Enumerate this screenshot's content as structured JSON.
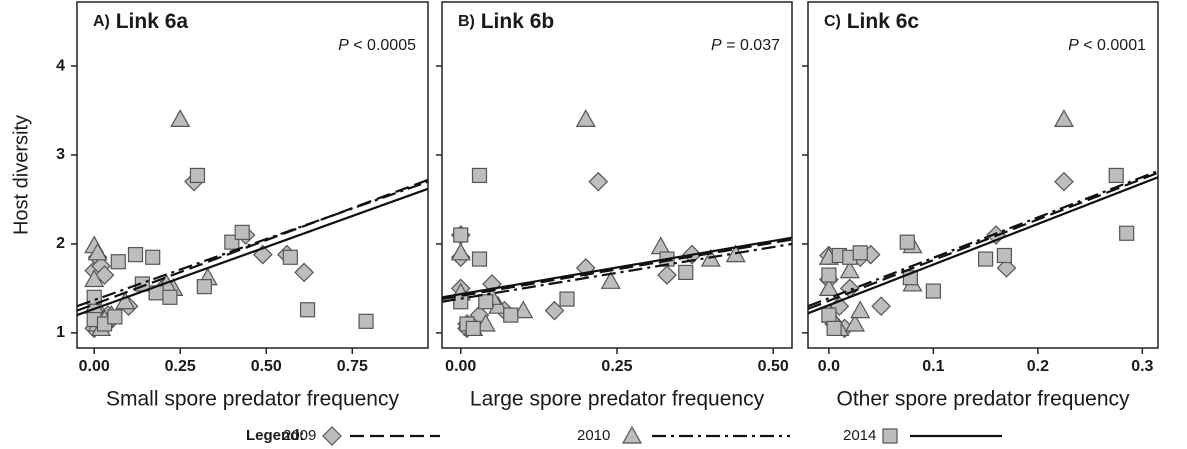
{
  "chart_data": [
    {
      "type": "scatter",
      "panel": "A)",
      "title": "Link 6a",
      "p_symbol": "P",
      "p_text": "< 0.0005",
      "xlabel": "Small spore predator frequency",
      "ylabel": "Host diversity",
      "xlim": [
        -0.05,
        0.97
      ],
      "ylim": [
        0.83,
        4.72
      ],
      "xticks": [
        {
          "value": 0,
          "label": "0.00"
        },
        0.25,
        {
          "value": 0.5,
          "label": "0.50"
        },
        0.75
      ],
      "yticks": [
        1,
        2,
        3,
        4
      ],
      "series": [
        {
          "name": "2009",
          "marker": "diamond",
          "line_style": "dashed",
          "color": "#bdbdbd",
          "x": [
            0,
            0,
            0.01,
            0.02,
            0.03,
            0.02,
            0.05,
            0.1,
            0.2,
            0.29,
            0.44,
            0.49,
            0.56,
            0.61,
            0.01,
            0.04
          ],
          "values": [
            1.05,
            1.7,
            1.85,
            1.75,
            1.65,
            1.2,
            1.15,
            1.3,
            1.5,
            2.7,
            2.1,
            1.88,
            1.88,
            1.68,
            1.1,
            1.2
          ],
          "fit": {
            "x": [
              -0.05,
              0.97
            ],
            "values": [
              1.25,
              2.72
            ]
          }
        },
        {
          "name": "2010",
          "marker": "triangle",
          "line_style": "dashdot",
          "color": "#bdbdbd",
          "x": [
            0,
            0,
            0,
            0.01,
            0.02,
            0.05,
            0.09,
            0.23,
            0.25,
            0.33,
            0.21,
            0.01,
            0.03
          ],
          "values": [
            1.98,
            1.6,
            1.3,
            1.1,
            1.05,
            1.2,
            1.35,
            1.5,
            3.4,
            1.62,
            1.55,
            1.9,
            1.15
          ],
          "fit": {
            "x": [
              -0.05,
              0.97
            ],
            "values": [
              1.3,
              2.7
            ]
          }
        },
        {
          "name": "2014",
          "marker": "square",
          "line_style": "solid",
          "color": "#bdbdbd",
          "x": [
            0,
            0,
            0.03,
            0.07,
            0.12,
            0.17,
            0.18,
            0.22,
            0.3,
            0.32,
            0.4,
            0.43,
            0.57,
            0.62,
            0.79,
            0.06,
            0.14
          ],
          "values": [
            1.4,
            1.15,
            1.1,
            1.8,
            1.88,
            1.85,
            1.45,
            1.4,
            2.77,
            1.52,
            2.02,
            2.13,
            1.85,
            1.26,
            1.13,
            1.18,
            1.55
          ],
          "fit": {
            "x": [
              -0.05,
              0.97
            ],
            "values": [
              1.2,
              2.62
            ]
          }
        }
      ]
    },
    {
      "type": "scatter",
      "panel": "B)",
      "title": "Link 6b",
      "p_symbol": "P",
      "p_text": "= 0.037",
      "xlabel": "Large spore predator frequency",
      "xlim": [
        -0.03,
        0.53
      ],
      "ylim": [
        0.83,
        4.72
      ],
      "xticks": [
        {
          "value": 0,
          "label": "0.00"
        },
        0.25,
        {
          "value": 0.5,
          "label": "0.50"
        }
      ],
      "yticks": [
        1,
        2,
        3,
        4
      ],
      "series": [
        {
          "name": "2009",
          "marker": "diamond",
          "line_style": "dashed",
          "color": "#bdbdbd",
          "x": [
            0,
            0,
            0,
            0.01,
            0.03,
            0.05,
            0.07,
            0.15,
            0.2,
            0.22,
            0.33,
            0.37,
            0.01
          ],
          "values": [
            2.1,
            1.85,
            1.5,
            1.1,
            1.2,
            1.55,
            1.25,
            1.25,
            1.73,
            2.7,
            1.65,
            1.88,
            1.05
          ],
          "fit": {
            "x": [
              -0.03,
              0.53
            ],
            "values": [
              1.38,
              2.05
            ]
          }
        },
        {
          "name": "2010",
          "marker": "triangle",
          "line_style": "dashdot",
          "color": "#bdbdbd",
          "x": [
            0,
            0,
            0.02,
            0.04,
            0.06,
            0.1,
            0.2,
            0.24,
            0.32,
            0.4,
            0.44,
            0.05
          ],
          "values": [
            1.9,
            1.45,
            1.05,
            1.1,
            1.3,
            1.25,
            3.4,
            1.58,
            1.97,
            1.83,
            1.88,
            1.4
          ],
          "fit": {
            "x": [
              -0.03,
              0.53
            ],
            "values": [
              1.35,
              2.0
            ]
          }
        },
        {
          "name": "2014",
          "marker": "square",
          "line_style": "solid",
          "color": "#bdbdbd",
          "x": [
            0,
            0,
            0.01,
            0.03,
            0.03,
            0.04,
            0.08,
            0.17,
            0.33,
            0.36,
            0.02
          ],
          "values": [
            2.1,
            1.35,
            1.1,
            2.77,
            1.83,
            1.35,
            1.2,
            1.38,
            1.83,
            1.68,
            1.05
          ],
          "fit": {
            "x": [
              -0.03,
              0.53
            ],
            "values": [
              1.4,
              2.07
            ]
          }
        }
      ]
    },
    {
      "type": "scatter",
      "panel": "C)",
      "title": "Link 6c",
      "p_symbol": "P",
      "p_text": "< 0.0001",
      "xlabel": "Other spore predator frequency",
      "xlim": [
        -0.02,
        0.315
      ],
      "ylim": [
        0.83,
        4.72
      ],
      "xticks": [
        {
          "value": 0,
          "label": "0.0"
        },
        0.1,
        0.2,
        0.3
      ],
      "yticks": [
        1,
        2,
        3,
        4
      ],
      "series": [
        {
          "name": "2009",
          "marker": "diamond",
          "line_style": "dashed",
          "color": "#bdbdbd",
          "x": [
            0,
            0,
            0.005,
            0.01,
            0.02,
            0.03,
            0.04,
            0.05,
            0.16,
            0.17,
            0.225,
            0.015
          ],
          "values": [
            1.87,
            1.6,
            1.1,
            1.3,
            1.5,
            1.85,
            1.88,
            1.3,
            2.1,
            1.73,
            2.7,
            1.05
          ],
          "fit": {
            "x": [
              -0.02,
              0.315
            ],
            "values": [
              1.27,
              2.8
            ]
          }
        },
        {
          "name": "2010",
          "marker": "triangle",
          "line_style": "dashdot",
          "color": "#bdbdbd",
          "x": [
            0,
            0,
            0.002,
            0.01,
            0.02,
            0.025,
            0.08,
            0.08,
            0.225,
            0.03
          ],
          "values": [
            1.85,
            1.5,
            1.2,
            1.05,
            1.7,
            1.1,
            1.98,
            1.55,
            3.4,
            1.25
          ],
          "fit": {
            "x": [
              -0.02,
              0.315
            ],
            "values": [
              1.3,
              2.82
            ]
          }
        },
        {
          "name": "2014",
          "marker": "square",
          "line_style": "solid",
          "color": "#bdbdbd",
          "x": [
            0,
            0,
            0.01,
            0.02,
            0.03,
            0.075,
            0.078,
            0.1,
            0.15,
            0.168,
            0.275,
            0.285,
            0.005
          ],
          "values": [
            1.65,
            1.2,
            1.87,
            1.85,
            1.9,
            2.02,
            1.62,
            1.47,
            1.83,
            1.87,
            2.77,
            2.12,
            1.05
          ],
          "fit": {
            "x": [
              -0.02,
              0.315
            ],
            "values": [
              1.22,
              2.75
            ]
          }
        }
      ]
    }
  ],
  "legend": {
    "title": "Legend:"
  }
}
